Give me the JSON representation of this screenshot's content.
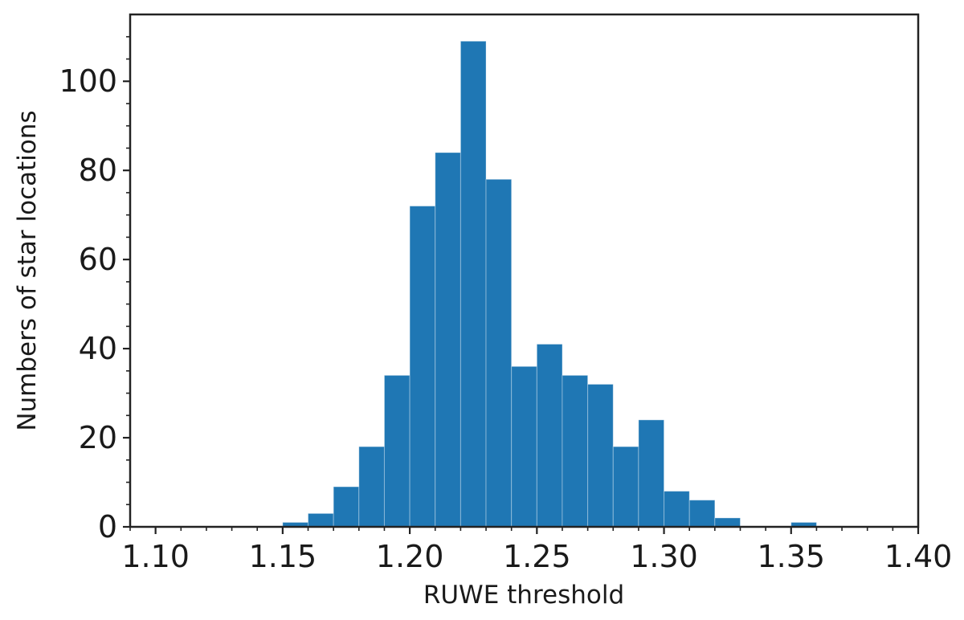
{
  "chart_data": {
    "type": "bar",
    "title": "",
    "xlabel": "RUWE threshold",
    "ylabel": "Numbers of star locations",
    "xlim": [
      1.09,
      1.4
    ],
    "ylim": [
      0,
      115
    ],
    "bin_width": 0.01,
    "bins": [
      {
        "x0": 1.15,
        "x1": 1.16,
        "count": 1
      },
      {
        "x0": 1.16,
        "x1": 1.17,
        "count": 3
      },
      {
        "x0": 1.17,
        "x1": 1.18,
        "count": 9
      },
      {
        "x0": 1.18,
        "x1": 1.19,
        "count": 18
      },
      {
        "x0": 1.19,
        "x1": 1.2,
        "count": 34
      },
      {
        "x0": 1.2,
        "x1": 1.21,
        "count": 72
      },
      {
        "x0": 1.21,
        "x1": 1.22,
        "count": 84
      },
      {
        "x0": 1.22,
        "x1": 1.23,
        "count": 109
      },
      {
        "x0": 1.23,
        "x1": 1.24,
        "count": 78
      },
      {
        "x0": 1.24,
        "x1": 1.25,
        "count": 36
      },
      {
        "x0": 1.25,
        "x1": 1.26,
        "count": 41
      },
      {
        "x0": 1.26,
        "x1": 1.27,
        "count": 34
      },
      {
        "x0": 1.27,
        "x1": 1.28,
        "count": 32
      },
      {
        "x0": 1.28,
        "x1": 1.29,
        "count": 18
      },
      {
        "x0": 1.29,
        "x1": 1.3,
        "count": 24
      },
      {
        "x0": 1.3,
        "x1": 1.31,
        "count": 8
      },
      {
        "x0": 1.31,
        "x1": 1.32,
        "count": 6
      },
      {
        "x0": 1.32,
        "x1": 1.33,
        "count": 2
      },
      {
        "x0": 1.35,
        "x1": 1.36,
        "count": 1
      }
    ],
    "xticks": [
      "1.10",
      "1.15",
      "1.20",
      "1.25",
      "1.30",
      "1.35",
      "1.40"
    ],
    "yticks": [
      "0",
      "20",
      "40",
      "60",
      "80",
      "100"
    ],
    "bar_color": "#1f77b4",
    "grid": false,
    "legend": "none"
  }
}
